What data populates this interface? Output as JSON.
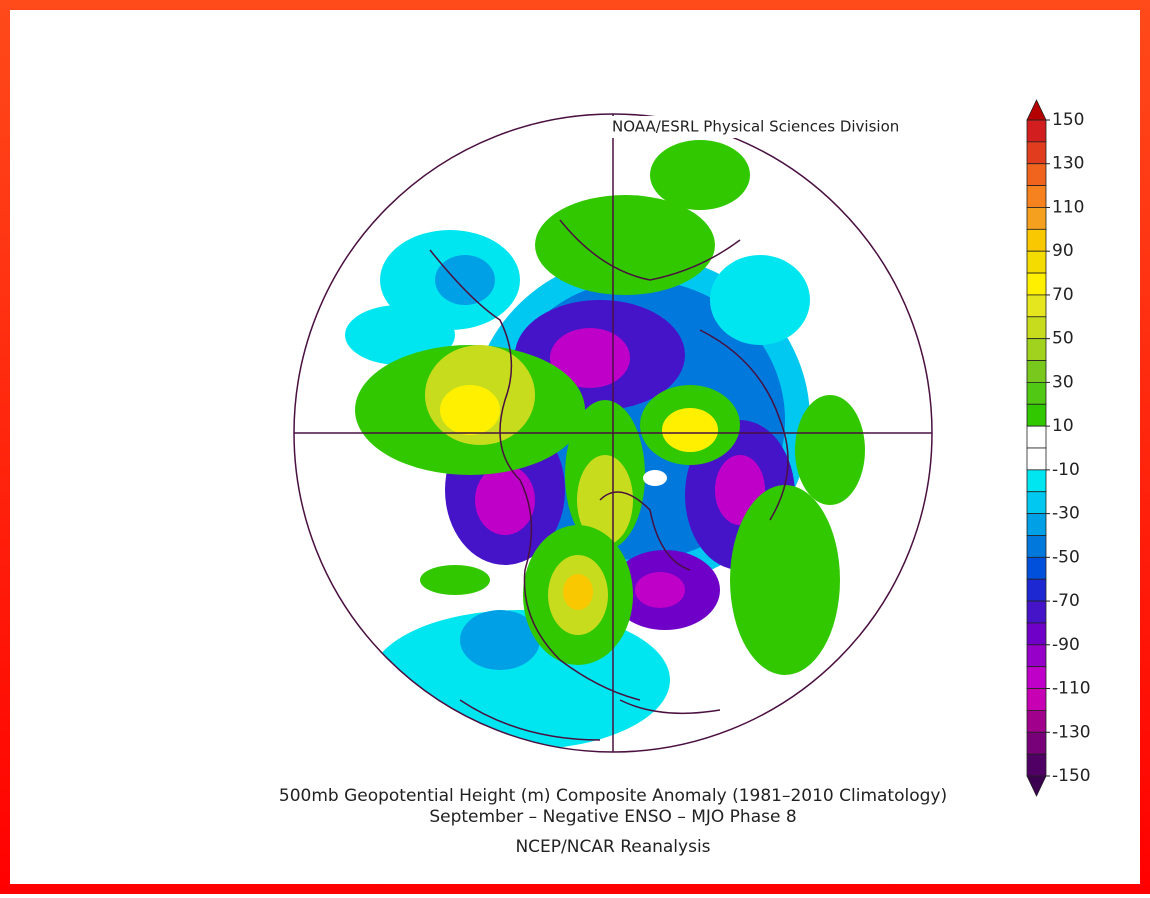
{
  "header": {
    "credit": "NOAA/ESRL Physical Sciences Division"
  },
  "colorbar": {
    "ticks": [
      150,
      130,
      110,
      90,
      70,
      50,
      30,
      10,
      -10,
      -30,
      -50,
      -70,
      -90,
      -110,
      -130,
      -150
    ],
    "over_color": "#b40000",
    "under_color": "#3c0050",
    "colors": [
      "#d21e1e",
      "#e23c1e",
      "#f0641e",
      "#f5821e",
      "#f5a01e",
      "#fac800",
      "#f5dc00",
      "#fff000",
      "#e6e61e",
      "#c8dc1e",
      "#a0d21e",
      "#78c81e",
      "#50c814",
      "#32c800",
      "#ffffff",
      "#ffffff",
      "#00e6f0",
      "#00c8f0",
      "#00a0e6",
      "#0078dc",
      "#0050dc",
      "#1e28d2",
      "#4614c8",
      "#6e00c8",
      "#9600c8",
      "#be00c8",
      "#c800b4",
      "#a0008c",
      "#780078",
      "#500064"
    ]
  },
  "caption": {
    "title": "500mb Geopotential Height (m) Composite Anomaly (1981–2010 Climatology)",
    "subtitle": "September – Negative ENSO – MJO Phase 8",
    "source": "NCEP/NCAR Reanalysis"
  }
}
